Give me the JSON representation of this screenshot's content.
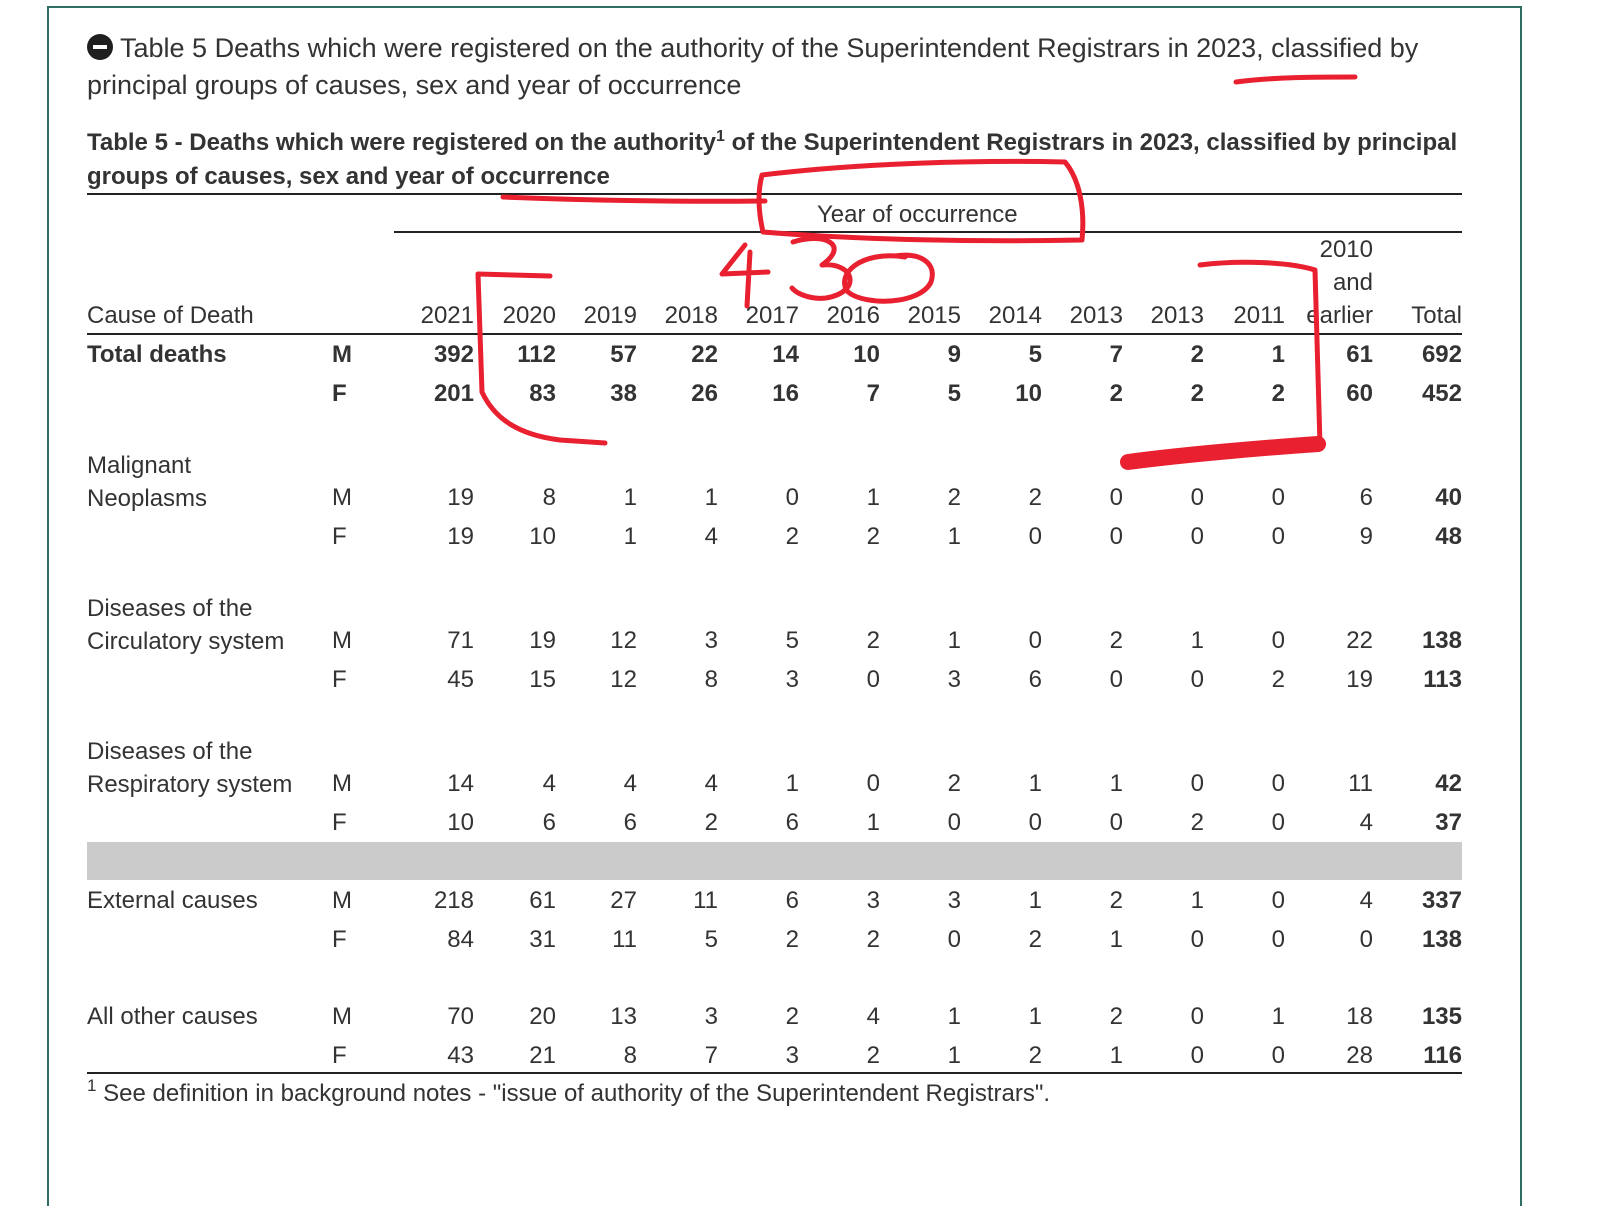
{
  "section_heading": "Table 5 Deaths which were registered on the authority of the Superintendent Registrars in 2023, classified by principal groups of causes, sex and year of occurrence",
  "table": {
    "caption_before_sup": "Table 5 - Deaths which were registered on the authority",
    "caption_sup": "1",
    "caption_after_sup": " of the Superintendent Registrars in 2023, classified by principal groups of causes, sex and year of occurrence",
    "group_header": "Year of occurrence",
    "stub_header": "Cause of Death",
    "year_columns": [
      "2021",
      "2020",
      "2019",
      "2018",
      "2017",
      "2016",
      "2015",
      "2014",
      "2013",
      "2013",
      "2011"
    ],
    "earlier_column": [
      "2010",
      "and",
      "earlier"
    ],
    "total_column": "Total",
    "groups": [
      {
        "cause_lines": [
          "Total deaths"
        ],
        "bold": true,
        "rows": [
          {
            "sex": "M",
            "values": [
              "392",
              "112",
              "57",
              "22",
              "14",
              "10",
              "9",
              "5",
              "7",
              "2",
              "1",
              "61"
            ],
            "total": "692"
          },
          {
            "sex": "F",
            "values": [
              "201",
              "83",
              "38",
              "26",
              "16",
              "7",
              "5",
              "10",
              "2",
              "2",
              "2",
              "60"
            ],
            "total": "452"
          }
        ]
      },
      {
        "cause_lines": [
          "Malignant",
          "Neoplasms"
        ],
        "bold": false,
        "rows": [
          {
            "sex": "M",
            "values": [
              "19",
              "8",
              "1",
              "1",
              "0",
              "1",
              "2",
              "2",
              "0",
              "0",
              "0",
              "6"
            ],
            "total": "40"
          },
          {
            "sex": "F",
            "values": [
              "19",
              "10",
              "1",
              "4",
              "2",
              "2",
              "1",
              "0",
              "0",
              "0",
              "0",
              "9"
            ],
            "total": "48"
          }
        ]
      },
      {
        "cause_lines": [
          "Diseases of the",
          "Circulatory system"
        ],
        "bold": false,
        "rows": [
          {
            "sex": "M",
            "values": [
              "71",
              "19",
              "12",
              "3",
              "5",
              "2",
              "1",
              "0",
              "2",
              "1",
              "0",
              "22"
            ],
            "total": "138"
          },
          {
            "sex": "F",
            "values": [
              "45",
              "15",
              "12",
              "8",
              "3",
              "0",
              "3",
              "6",
              "0",
              "0",
              "2",
              "19"
            ],
            "total": "113"
          }
        ]
      },
      {
        "cause_lines": [
          "Diseases of the",
          "Respiratory system"
        ],
        "bold": false,
        "rows": [
          {
            "sex": "M",
            "values": [
              "14",
              "4",
              "4",
              "4",
              "1",
              "0",
              "2",
              "1",
              "1",
              "0",
              "0",
              "11"
            ],
            "total": "42"
          },
          {
            "sex": "F",
            "values": [
              "10",
              "6",
              "6",
              "2",
              "6",
              "1",
              "0",
              "0",
              "0",
              "2",
              "0",
              "4"
            ],
            "total": "37"
          }
        ]
      },
      {
        "cause_lines": [
          "External causes"
        ],
        "bold": false,
        "rows": [
          {
            "sex": "M",
            "values": [
              "218",
              "61",
              "27",
              "11",
              "6",
              "3",
              "3",
              "1",
              "2",
              "1",
              "0",
              "4"
            ],
            "total": "337"
          },
          {
            "sex": "F",
            "values": [
              "84",
              "31",
              "11",
              "5",
              "2",
              "2",
              "0",
              "2",
              "1",
              "0",
              "0",
              "0"
            ],
            "total": "138"
          }
        ]
      },
      {
        "cause_lines": [
          "All other causes"
        ],
        "bold": false,
        "rows": [
          {
            "sex": "M",
            "values": [
              "70",
              "20",
              "13",
              "3",
              "2",
              "4",
              "1",
              "1",
              "2",
              "0",
              "1",
              "18"
            ],
            "total": "135"
          },
          {
            "sex": "F",
            "values": [
              "43",
              "21",
              "8",
              "7",
              "3",
              "2",
              "1",
              "2",
              "1",
              "0",
              "0",
              "28"
            ],
            "total": "116"
          }
        ]
      }
    ],
    "footnote_sup": "1",
    "footnote_text": " See definition in background notes - \"issue of authority of the Superintendent Registrars\"."
  },
  "annotations": {
    "ink_color": "#e8202f",
    "handwritten_number": "430"
  }
}
